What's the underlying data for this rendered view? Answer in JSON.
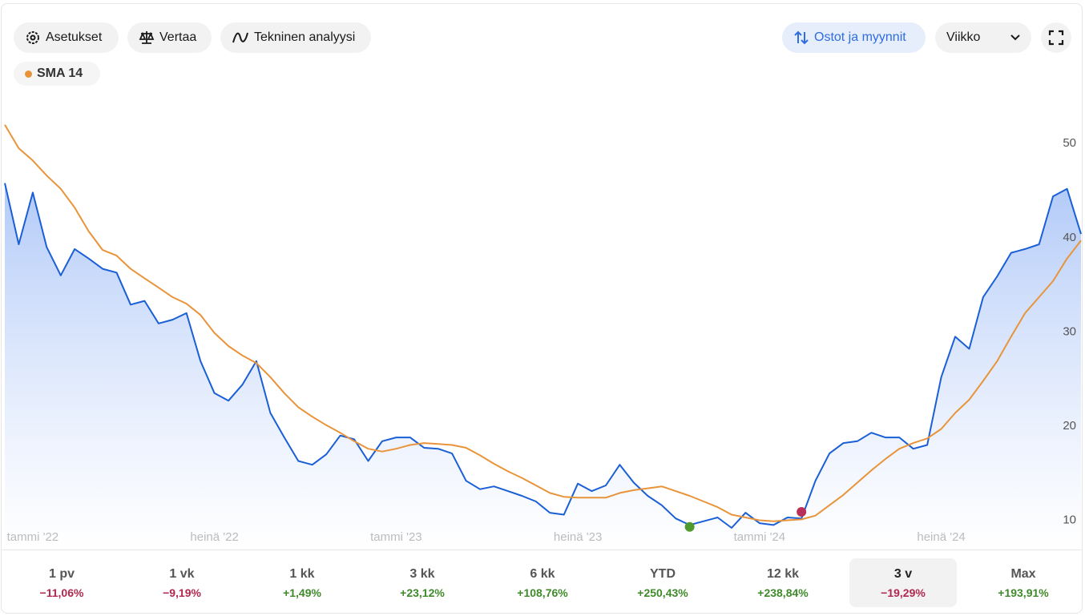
{
  "toolbar": {
    "buttons": [
      "Asetukset",
      "Vertaa",
      "Tekninen analyysi"
    ],
    "trades_toggle": "Ostot ja myynnit",
    "interval": "Viikko"
  },
  "chart_data": {
    "type": "line",
    "categories": [
      null,
      null,
      "tammi '22",
      null,
      null,
      null,
      null,
      null,
      null,
      null,
      null,
      null,
      null,
      null,
      null,
      "heinä '22",
      null,
      null,
      null,
      null,
      null,
      null,
      null,
      null,
      null,
      null,
      null,
      null,
      "tammi '23",
      null,
      null,
      null,
      null,
      null,
      null,
      null,
      null,
      null,
      null,
      null,
      null,
      "heinä '23",
      null,
      null,
      null,
      null,
      null,
      null,
      null,
      null,
      null,
      null,
      null,
      null,
      "tammi '24",
      null,
      null,
      null,
      null,
      null,
      null,
      null,
      null,
      null,
      null,
      null,
      null,
      "heinä '24",
      null,
      null,
      null,
      null,
      null,
      null,
      null,
      null,
      null,
      null
    ],
    "series": [
      {
        "color": "#1a5fd6",
        "values": [
          45.8,
          39.3,
          44.8,
          39.0,
          36.0,
          38.8,
          37.8,
          36.7,
          36.3,
          32.9,
          33.3,
          30.9,
          31.3,
          32.0,
          26.9,
          23.5,
          22.7,
          24.4,
          26.9,
          21.4,
          18.8,
          16.3,
          15.9,
          17.0,
          19.0,
          18.6,
          16.3,
          18.4,
          18.8,
          18.8,
          17.7,
          17.6,
          17.1,
          14.2,
          13.3,
          13.6,
          13.1,
          12.6,
          12.0,
          10.8,
          10.6,
          13.9,
          13.1,
          13.7,
          15.9,
          14.0,
          12.6,
          11.6,
          10.2,
          9.5,
          9.9,
          10.3,
          9.2,
          10.8,
          9.7,
          9.5,
          10.3,
          10.2,
          14.2,
          17.1,
          18.2,
          18.4,
          19.3,
          18.8,
          18.8,
          17.6,
          18.0,
          25.2,
          29.5,
          28.2,
          33.7,
          35.9,
          38.4,
          38.8,
          39.3,
          44.4,
          45.2,
          40.4
        ]
      },
      {
        "name": "SMA 14",
        "color": "#e8943a",
        "values": [
          52.0,
          49.5,
          48.2,
          46.6,
          45.2,
          43.2,
          40.7,
          38.7,
          38.1,
          36.7,
          35.7,
          34.7,
          33.7,
          33.0,
          31.8,
          29.9,
          28.5,
          27.5,
          26.7,
          25.2,
          23.5,
          22.0,
          21.0,
          20.1,
          19.3,
          18.4,
          17.6,
          17.3,
          17.6,
          18.0,
          18.2,
          18.1,
          18.0,
          17.7,
          16.9,
          16.0,
          15.2,
          14.5,
          13.7,
          12.9,
          12.5,
          12.4,
          12.4,
          12.4,
          12.9,
          13.2,
          13.4,
          13.6,
          13.1,
          12.6,
          12.0,
          11.4,
          10.6,
          10.3,
          10.0,
          9.9,
          10.0,
          10.1,
          10.5,
          11.6,
          12.7,
          14.0,
          15.3,
          16.5,
          17.6,
          18.2,
          18.7,
          19.7,
          21.4,
          22.8,
          24.8,
          26.9,
          29.5,
          32.0,
          33.7,
          35.4,
          37.8,
          39.7
        ]
      }
    ],
    "trades": [
      {
        "x": 49,
        "value": 9.3,
        "color": "#4f9a2f"
      },
      {
        "x": 57,
        "value": 10.9,
        "color": "#b8305a"
      }
    ],
    "ylim": [
      6.9,
      54.1
    ],
    "yticks": [
      10,
      20,
      30,
      40,
      50
    ],
    "grid": false
  },
  "periods": [
    {
      "label": "1 pv",
      "change": "−11,06%"
    },
    {
      "label": "1 vk",
      "change": "−9,19%"
    },
    {
      "label": "1 kk",
      "change": "+1,49%"
    },
    {
      "label": "3 kk",
      "change": "+23,12%"
    },
    {
      "label": "6 kk",
      "change": "+108,76%"
    },
    {
      "label": "YTD",
      "change": "+250,43%"
    },
    {
      "label": "12 kk",
      "change": "+238,84%"
    },
    {
      "label": "3 v",
      "change": "−19,29%"
    },
    {
      "label": "Max",
      "change": "+193,91%"
    }
  ],
  "selected_period": 7
}
